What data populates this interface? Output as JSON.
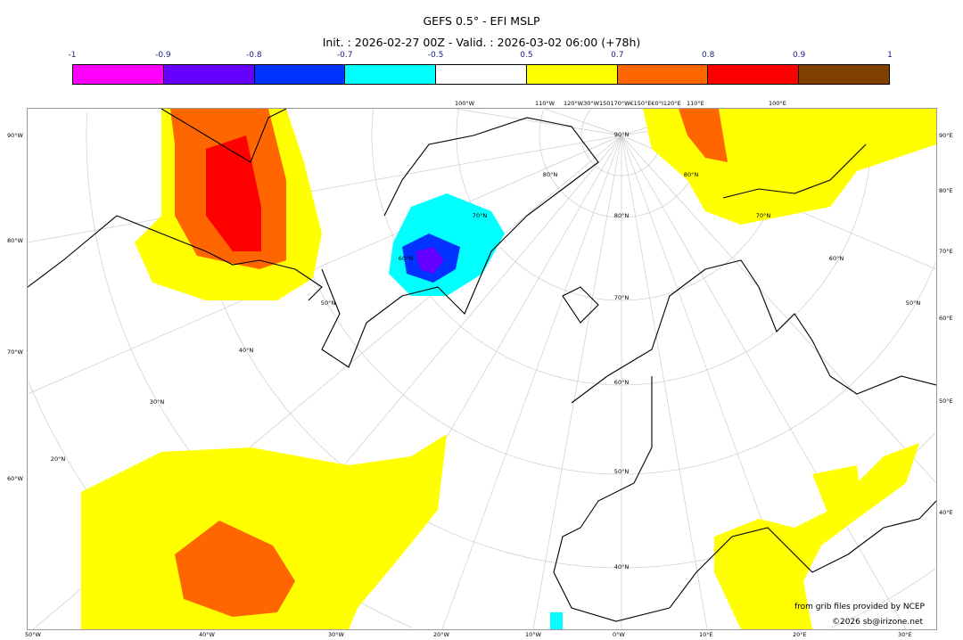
{
  "title": "GEFS 0.5° - EFI MSLP",
  "subtitle": "Init. : 2026-02-27 00Z - Valid. : 2026-03-02 06:00 (+78h)",
  "colorbar": {
    "ticks": [
      "-1",
      "-0.9",
      "-0.8",
      "-0.7",
      "-0.5",
      "0.5",
      "0.7",
      "0.8",
      "0.9",
      "1"
    ],
    "colors": [
      "#ff00ff",
      "#6600ff",
      "#0033ff",
      "#00ffff",
      "#ffffff",
      "#ffff00",
      "#ff6600",
      "#ff0000",
      "#804000"
    ]
  },
  "axes": {
    "left": [
      "90°W",
      "80°W",
      "70°W",
      "60°W"
    ],
    "right": [
      "90°E",
      "80°E",
      "70°E",
      "60°E",
      "50°E",
      "40°E"
    ],
    "bottom": [
      "50°W",
      "40°W",
      "30°W",
      "20°W",
      "10°W",
      "0°W",
      "10°E",
      "20°E",
      "30°E"
    ],
    "top": [
      "100°W",
      "110°W",
      "120°W30°W150170°W€150°E€0°I120°E",
      "110°E",
      "100°E"
    ]
  },
  "grid_labels": [
    "90°N",
    "80°N",
    "80°N",
    "70°N",
    "80°N",
    "70°N",
    "60°N",
    "60°N",
    "70°N",
    "50°N",
    "50°N",
    "40°N",
    "60°N",
    "30°N",
    "20°N",
    "50°N",
    "40°N"
  ],
  "credits": {
    "source": "from grib files provided by NCEP",
    "copyright": "©2026 sb@irizone.net"
  }
}
